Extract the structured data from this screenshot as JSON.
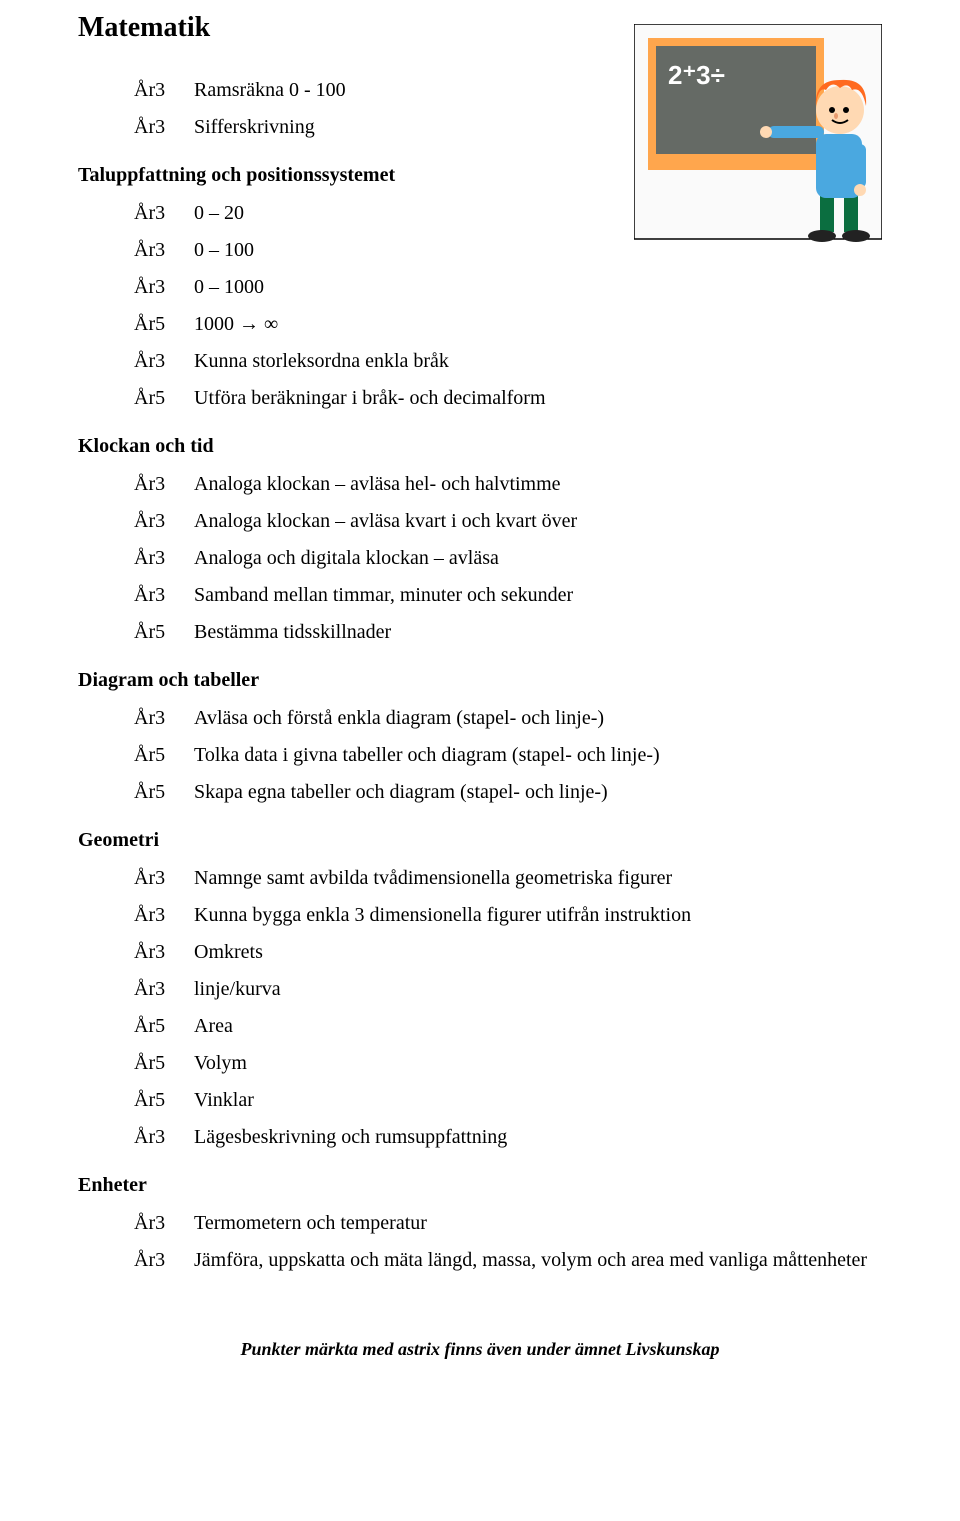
{
  "title": "Matematik",
  "illustration": {
    "bg": "#fafafa",
    "board": "#656a65",
    "board_text": "2⁺3÷",
    "board_text_color": "#ffffff",
    "frame": "#ffa64d",
    "hair": "#ff6a1f",
    "skin": "#ffd9b3",
    "shirt": "#4aa8e0",
    "pants": "#0b6e40",
    "shoe": "#222222"
  },
  "sections": [
    {
      "heading": null,
      "indent": true,
      "items": [
        {
          "year": "År3",
          "text": "Ramsräkna 0 - 100"
        },
        {
          "year": "År3",
          "text": "Sifferskrivning"
        }
      ]
    },
    {
      "heading": "Taluppfattning och positionssystemet",
      "indent": true,
      "items": [
        {
          "year": "År3",
          "text": "0 – 20"
        },
        {
          "year": "År3",
          "text": "0 – 100"
        },
        {
          "year": "År3",
          "text": "0 – 1000"
        },
        {
          "year": "År5",
          "text": "1000 → ∞"
        },
        {
          "year": "År3",
          "text": "Kunna storleksordna enkla bråk"
        },
        {
          "year": "År5",
          "text": "Utföra beräkningar i bråk- och decimalform"
        }
      ]
    },
    {
      "heading": "Klockan och tid",
      "indent": true,
      "items": [
        {
          "year": "År3",
          "text": "Analoga klockan – avläsa hel- och halvtimme"
        },
        {
          "year": "År3",
          "text": "Analoga klockan – avläsa kvart i och kvart över"
        },
        {
          "year": "År3",
          "text": "Analoga och digitala klockan – avläsa"
        },
        {
          "year": "År3",
          "text": "Samband mellan timmar, minuter och sekunder"
        },
        {
          "year": "År5",
          "text": "Bestämma tidsskillnader"
        }
      ]
    },
    {
      "heading": "Diagram och tabeller",
      "indent": true,
      "items": [
        {
          "year": "År3",
          "text": "Avläsa och förstå enkla diagram (stapel- och linje-)"
        },
        {
          "year": "År5",
          "text": "Tolka data i givna tabeller och diagram (stapel- och linje-)"
        },
        {
          "year": "År5",
          "text": "Skapa egna tabeller och diagram (stapel- och linje-)"
        }
      ]
    },
    {
      "heading": "Geometri",
      "indent": true,
      "items": [
        {
          "year": "År3",
          "text": "Namnge samt avbilda tvådimensionella geometriska figurer"
        },
        {
          "year": "År3",
          "text": "Kunna bygga enkla 3 dimensionella figurer utifrån instruktion"
        },
        {
          "year": "År3",
          "text": "Omkrets"
        },
        {
          "year": "År3",
          "text": "linje/kurva"
        },
        {
          "year": "År5",
          "text": "Area"
        },
        {
          "year": "År5",
          "text": "Volym"
        },
        {
          "year": "År5",
          "text": "Vinklar"
        },
        {
          "year": "År3",
          "text": "Lägesbeskrivning och rumsuppfattning"
        }
      ]
    },
    {
      "heading": "Enheter",
      "indent": true,
      "items": [
        {
          "year": "År3",
          "text": "Termometern och temperatur"
        },
        {
          "year": "År3",
          "text": "Jämföra, uppskatta och mäta längd, massa, volym och area med vanliga måttenheter"
        }
      ]
    }
  ],
  "footer": "Punkter märkta med astrix  finns även under ämnet Livskunskap"
}
